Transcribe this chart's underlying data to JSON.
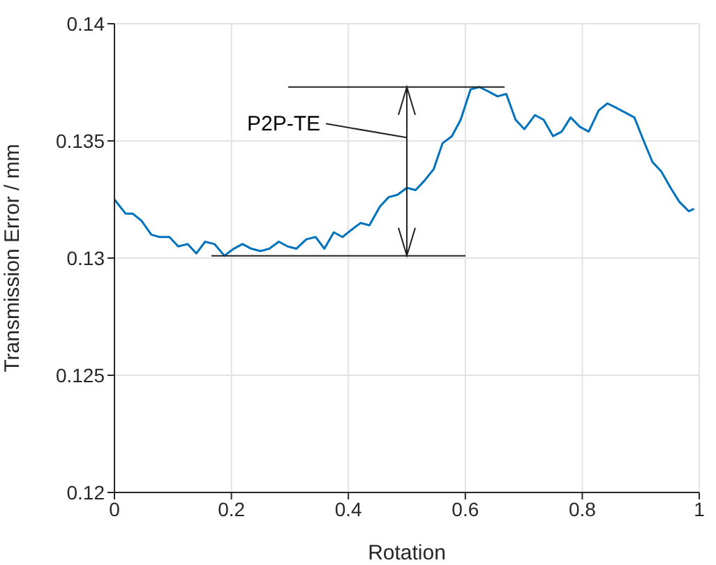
{
  "chart_data": {
    "type": "line",
    "xlabel": "Rotation",
    "ylabel": "Transmission Error / mm",
    "xlim": [
      0,
      1
    ],
    "xticks": [
      0,
      0.2,
      0.4,
      0.6,
      0.8,
      1
    ],
    "ylim": [
      0.12,
      0.14
    ],
    "yticks": [
      0.12,
      0.125,
      0.13,
      0.135,
      0.14
    ],
    "grid": true,
    "marker": "none",
    "line_style": "solid",
    "annotations": [
      "P2P-TE"
    ],
    "ref_lines": [
      {
        "axis": "y",
        "value": 0.1373,
        "color": "#222222"
      },
      {
        "axis": "y",
        "value": 0.1301,
        "color": "#222222"
      }
    ],
    "series": [
      {
        "color": "#0072bd",
        "x": [
          0,
          0.019,
          0.031,
          0.046,
          0.063,
          0.077,
          0.094,
          0.109,
          0.125,
          0.14,
          0.155,
          0.171,
          0.188,
          0.204,
          0.219,
          0.234,
          0.25,
          0.265,
          0.281,
          0.296,
          0.311,
          0.328,
          0.344,
          0.359,
          0.375,
          0.39,
          0.405,
          0.421,
          0.436,
          0.454,
          0.469,
          0.484,
          0.5,
          0.515,
          0.53,
          0.546,
          0.561,
          0.577,
          0.592,
          0.609,
          0.624,
          0.64,
          0.655,
          0.67,
          0.686,
          0.701,
          0.719,
          0.734,
          0.75,
          0.765,
          0.78,
          0.796,
          0.811,
          0.828,
          0.843,
          0.859,
          0.874,
          0.889,
          0.905,
          0.92,
          0.935,
          0.951,
          0.966,
          0.982,
          0.991
        ],
        "values": [
          0.1325,
          0.1319,
          0.1319,
          0.1316,
          0.131,
          0.1309,
          0.1309,
          0.1305,
          0.1306,
          0.1302,
          0.1307,
          0.1306,
          0.1301,
          0.1304,
          0.1306,
          0.1304,
          0.1303,
          0.1304,
          0.1307,
          0.1305,
          0.1304,
          0.1308,
          0.1309,
          0.1304,
          0.1311,
          0.1309,
          0.1312,
          0.1315,
          0.1314,
          0.1322,
          0.1326,
          0.1327,
          0.133,
          0.1329,
          0.1333,
          0.1338,
          0.1349,
          0.1352,
          0.1359,
          0.1372,
          0.1373,
          0.1371,
          0.1369,
          0.137,
          0.1359,
          0.1355,
          0.1361,
          0.1359,
          0.1352,
          0.1354,
          0.136,
          0.1356,
          0.1354,
          0.1363,
          0.1366,
          0.1364,
          0.1362,
          0.136,
          0.135,
          0.1341,
          0.1337,
          0.133,
          0.1324,
          0.132,
          0.1321
        ]
      }
    ]
  }
}
